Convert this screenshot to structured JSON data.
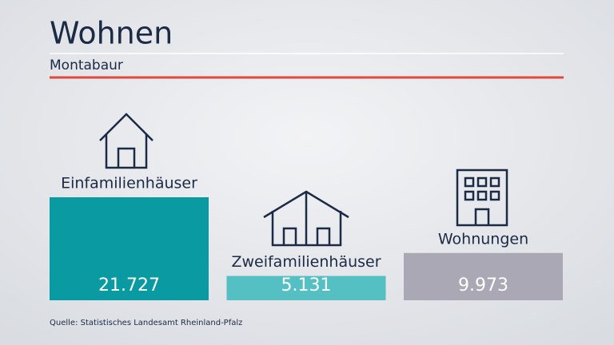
{
  "chart_data": {
    "type": "bar",
    "title": "Wohnen",
    "subtitle": "Montabaur",
    "categories": [
      "Einfamilienhäuser",
      "Zweifamilienhäuser",
      "Wohnungen"
    ],
    "values": [
      21727,
      5131,
      9973
    ],
    "value_labels": [
      "21.727",
      "5.131",
      "9.973"
    ],
    "colors": [
      "#0a9aa2",
      "#55c0c4",
      "#a9a8b4"
    ],
    "source": "Quelle: Statistisches Landesamt Rheinland-Pfalz"
  }
}
